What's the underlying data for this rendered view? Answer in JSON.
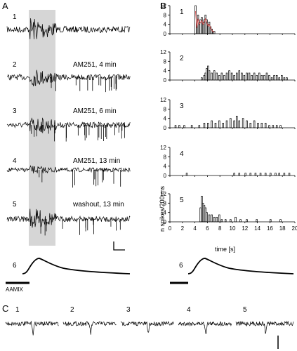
{
  "panels": {
    "A": {
      "label": "A",
      "traces": [
        {
          "num": "1",
          "condition": ""
        },
        {
          "num": "2",
          "condition": "AM251, 4 min"
        },
        {
          "num": "3",
          "condition": "AM251, 6 min"
        },
        {
          "num": "4",
          "condition": "AM251, 13 min"
        },
        {
          "num": "5",
          "condition": "washout, 13 min"
        }
      ],
      "stim_num": "6",
      "stim_label": "AAMIX"
    },
    "B": {
      "label": "B",
      "ylabel": "n spikes/200 ms",
      "xlabel": "time [s]",
      "stim_num": "6"
    },
    "C": {
      "label": "C",
      "nums": [
        "1",
        "2",
        "3",
        "4",
        "5"
      ]
    }
  },
  "chart_data": {
    "type": "bar",
    "xlabel": "time [s]",
    "ylabel": "n spikes/200 ms",
    "xlim": [
      0,
      20
    ],
    "ylim": [
      0,
      12
    ],
    "x_ticks": [
      "0",
      "2",
      "4",
      "6",
      "8",
      "10",
      "12",
      "14",
      "16",
      "18",
      "20"
    ],
    "y_ticks": [
      "0",
      "4",
      "8",
      "12"
    ],
    "bin_width_s": 0.2,
    "histograms": [
      {
        "num": "1",
        "bins": [
          [
            4.0,
            12
          ],
          [
            4.2,
            3
          ],
          [
            4.4,
            8
          ],
          [
            4.6,
            5
          ],
          [
            4.8,
            6
          ],
          [
            5.0,
            7
          ],
          [
            5.2,
            5
          ],
          [
            5.4,
            6
          ],
          [
            5.6,
            8
          ],
          [
            5.8,
            6
          ],
          [
            6.0,
            4
          ],
          [
            6.2,
            5
          ],
          [
            6.4,
            3
          ],
          [
            6.6,
            2
          ],
          [
            6.8,
            1
          ],
          [
            7.0,
            1
          ]
        ]
      },
      {
        "num": "2",
        "bins": [
          [
            5.0,
            1
          ],
          [
            5.4,
            2
          ],
          [
            5.6,
            3
          ],
          [
            5.8,
            5
          ],
          [
            6.0,
            6
          ],
          [
            6.2,
            4
          ],
          [
            6.6,
            3
          ],
          [
            7.0,
            4
          ],
          [
            7.4,
            3
          ],
          [
            7.8,
            2
          ],
          [
            8.2,
            3
          ],
          [
            8.6,
            2
          ],
          [
            9.0,
            3
          ],
          [
            9.4,
            4
          ],
          [
            9.8,
            3
          ],
          [
            10.2,
            2
          ],
          [
            10.6,
            3
          ],
          [
            11.0,
            4
          ],
          [
            11.4,
            3
          ],
          [
            11.8,
            2
          ],
          [
            12.2,
            3
          ],
          [
            12.6,
            3
          ],
          [
            13.0,
            2
          ],
          [
            13.4,
            3
          ],
          [
            13.8,
            2
          ],
          [
            14.2,
            3
          ],
          [
            14.6,
            2
          ],
          [
            15.0,
            2
          ],
          [
            15.4,
            3
          ],
          [
            15.8,
            2
          ],
          [
            16.2,
            1
          ],
          [
            16.6,
            2
          ],
          [
            17.0,
            2
          ],
          [
            17.4,
            1
          ],
          [
            17.8,
            2
          ],
          [
            18.2,
            1
          ],
          [
            18.6,
            1
          ]
        ]
      },
      {
        "num": "3",
        "bins": [
          [
            0.8,
            1
          ],
          [
            1.4,
            1
          ],
          [
            2.2,
            1
          ],
          [
            3.4,
            1
          ],
          [
            4.6,
            1
          ],
          [
            5.4,
            2
          ],
          [
            6.0,
            2
          ],
          [
            6.6,
            3
          ],
          [
            7.2,
            2
          ],
          [
            7.8,
            3
          ],
          [
            8.4,
            2
          ],
          [
            9.0,
            3
          ],
          [
            9.6,
            4
          ],
          [
            10.2,
            3
          ],
          [
            10.6,
            5
          ],
          [
            11.0,
            3
          ],
          [
            11.6,
            4
          ],
          [
            12.2,
            3
          ],
          [
            12.8,
            2
          ],
          [
            13.4,
            3
          ],
          [
            14.0,
            2
          ],
          [
            14.6,
            2
          ],
          [
            15.2,
            2
          ],
          [
            15.8,
            1
          ],
          [
            16.4,
            1
          ],
          [
            17.0,
            1
          ],
          [
            17.6,
            1
          ]
        ]
      },
      {
        "num": "4",
        "bins": [
          [
            2.6,
            1
          ],
          [
            10.2,
            1
          ],
          [
            11.0,
            1
          ],
          [
            12.0,
            1
          ],
          [
            12.8,
            1
          ],
          [
            13.6,
            1
          ],
          [
            14.4,
            1
          ],
          [
            15.2,
            1
          ],
          [
            16.0,
            1
          ],
          [
            16.8,
            1
          ],
          [
            17.4,
            1
          ],
          [
            18.2,
            1
          ],
          [
            19.0,
            1
          ]
        ]
      },
      {
        "num": "5",
        "bins": [
          [
            4.8,
            6
          ],
          [
            5.0,
            11
          ],
          [
            5.2,
            8
          ],
          [
            5.4,
            7
          ],
          [
            5.6,
            6
          ],
          [
            5.8,
            4
          ],
          [
            6.2,
            3
          ],
          [
            6.6,
            3
          ],
          [
            7.0,
            2
          ],
          [
            7.4,
            2
          ],
          [
            7.8,
            3
          ],
          [
            8.2,
            1
          ],
          [
            8.8,
            1
          ],
          [
            9.6,
            1
          ],
          [
            10.4,
            2
          ],
          [
            11.2,
            1
          ],
          [
            12.2,
            1
          ],
          [
            13.8,
            1
          ],
          [
            16.0,
            1
          ],
          [
            17.6,
            1
          ]
        ]
      }
    ]
  },
  "colors": {
    "ink": "#000000",
    "shade": "#d6d6d6",
    "overlay": "#d94a4a"
  }
}
